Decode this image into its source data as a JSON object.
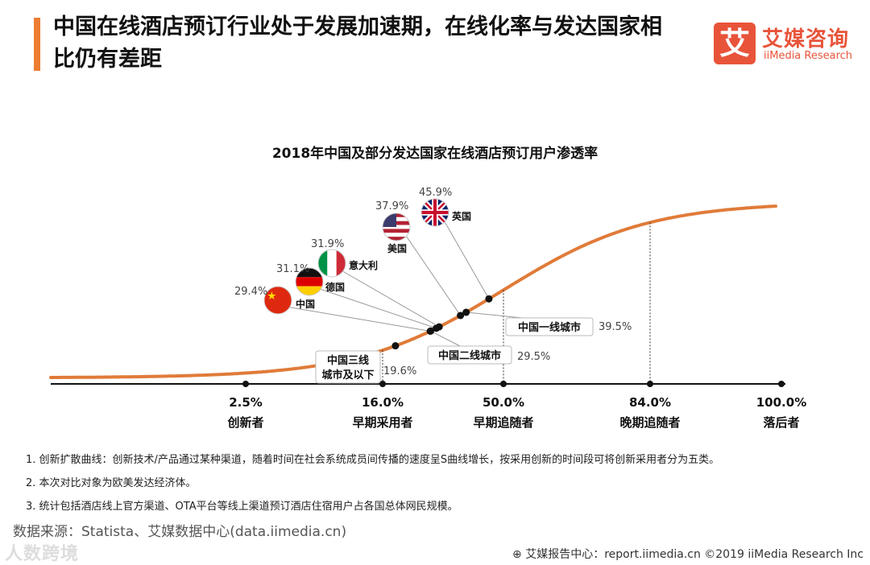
{
  "header": {
    "title": "中国在线酒店预订行业处于发展加速期，在线化率与发达国家相比仍有差距",
    "logo_mark": "艾",
    "logo_cn": "艾媒咨询",
    "logo_en": "iiMedia Research"
  },
  "colors": {
    "accent": "#ed7d31",
    "curve": "#e07b39",
    "brand": "#e8543a"
  },
  "chart_data": {
    "type": "line",
    "title": "2018年中国及部分发达国家在线酒店预订用户渗透率",
    "curve": "S-shaped diffusion of innovation curve",
    "stages": [
      {
        "x": 2.5,
        "value_label": "2.5%",
        "name": "创新者"
      },
      {
        "x": 16.0,
        "value_label": "16.0%",
        "name": "早期采用者"
      },
      {
        "x": 50.0,
        "value_label": "50.0%",
        "name": "早期追随者"
      },
      {
        "x": 84.0,
        "value_label": "84.0%",
        "name": "晚期追随者"
      },
      {
        "x": 100.0,
        "value_label": "100.0%",
        "name": "落后者"
      }
    ],
    "countries": [
      {
        "name": "中国",
        "value": 29.4,
        "value_label": "29.4%",
        "flag": "china"
      },
      {
        "name": "德国",
        "value": 31.1,
        "value_label": "31.1%",
        "flag": "germany"
      },
      {
        "name": "意大利",
        "value": 31.9,
        "value_label": "31.9%",
        "flag": "italy"
      },
      {
        "name": "美国",
        "value": 37.9,
        "value_label": "37.9%",
        "flag": "usa"
      },
      {
        "name": "英国",
        "value": 45.9,
        "value_label": "45.9%",
        "flag": "uk"
      }
    ],
    "cities": [
      {
        "name": "中国三线城市及以下",
        "line1": "中国三线",
        "line2": "城市及以下",
        "value": 19.6,
        "value_label": "19.6%"
      },
      {
        "name": "中国二线城市",
        "value": 29.5,
        "value_label": "29.5%"
      },
      {
        "name": "中国一线城市",
        "value": 39.5,
        "value_label": "39.5%"
      }
    ]
  },
  "notes": [
    "1. 创新扩散曲线：创新技术/产品通过某种渠道，随着时间在社会系统成员间传播的速度呈S曲线增长，按采用创新的时间段可将创新采用者分为五类。",
    "2. 本次对比对象为欧美发达经济体。",
    "3. 统计包括酒店线上官方渠道、OTA平台等线上渠道预订酒店住宿用户占各国总体网民规模。"
  ],
  "source": "数据来源：Statista、艾媒数据中心(data.iimedia.cn)",
  "footer": "艾媒报告中心：report.iimedia.cn  ©2019  iiMedia Research  Inc",
  "watermark": "人数跨境"
}
